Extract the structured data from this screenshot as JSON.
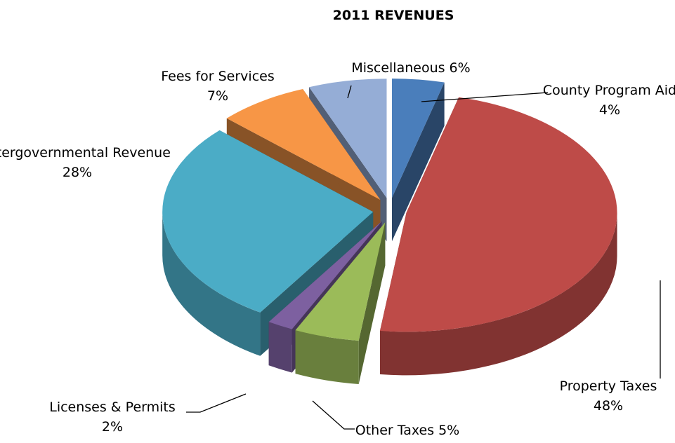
{
  "chart_data": {
    "type": "pie",
    "title": "2011 REVENUES",
    "categories": [
      "County Program Aid",
      "Property Taxes",
      "Other Taxes",
      "Licenses & Permits",
      "Intergovernmental Revenue",
      "Fees for Services",
      "Miscellaneous"
    ],
    "values": [
      4,
      48,
      5,
      2,
      28,
      7,
      6
    ],
    "value_labels": [
      "4%",
      "48%",
      "5%",
      "2%",
      "28%",
      "7%",
      "6%"
    ],
    "colors": [
      "#4a7ebb",
      "#be4b48",
      "#9bbb59",
      "#7d60a0",
      "#4bacc6",
      "#f79646",
      "#95add6"
    ]
  }
}
